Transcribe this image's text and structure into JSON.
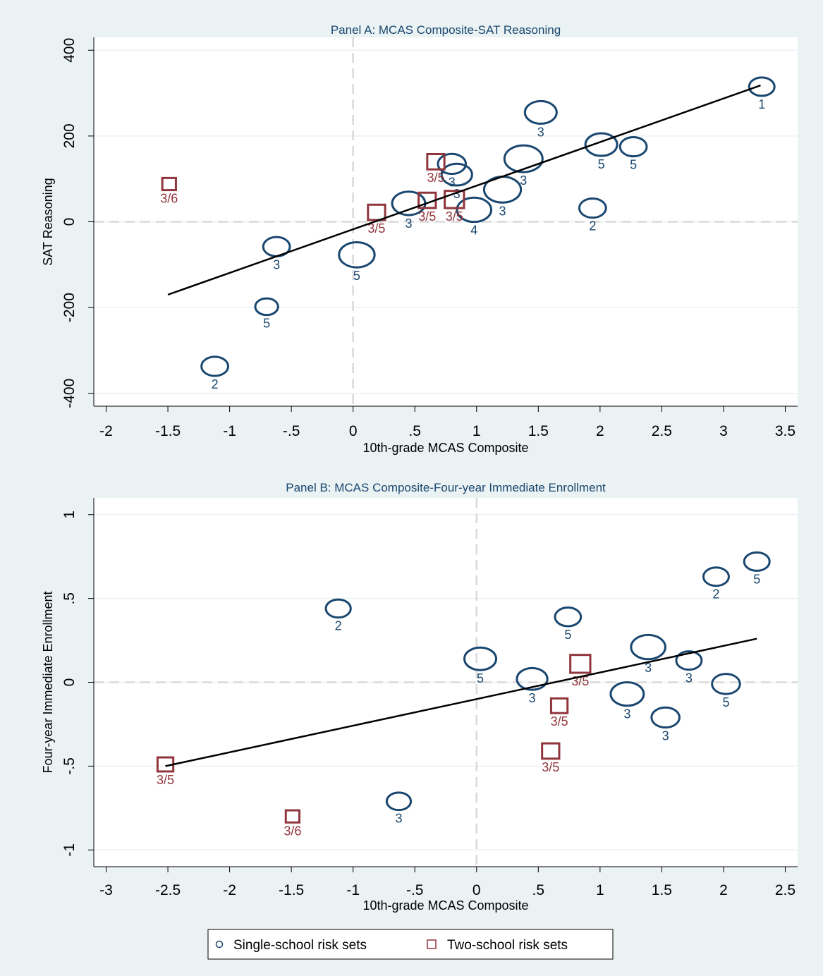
{
  "legend": {
    "items": [
      {
        "label": "Single-school risk sets",
        "marker": "circle",
        "color": "#1a476f"
      },
      {
        "label": "Two-school risk sets",
        "marker": "square",
        "color": "#90353b"
      }
    ]
  },
  "colors": {
    "background": "#eaf2f3",
    "plot_area": "#ffffff",
    "single_school": "#1a476f",
    "two_school": "#90353b",
    "fit_line": "#000000",
    "zero_line": "#d9d9d9"
  },
  "chart_data": [
    {
      "type": "scatter",
      "title": "Panel A: MCAS Composite-SAT Reasoning",
      "xlabel": "10th-grade MCAS Composite",
      "ylabel": "SAT Reasoning",
      "xlim": [
        -2.1,
        3.6
      ],
      "ylim": [
        -430,
        430
      ],
      "xticks": [
        -2,
        -1.5,
        -1,
        -0.5,
        0,
        0.5,
        1,
        1.5,
        2,
        2.5,
        3,
        3.5
      ],
      "xtick_labels": [
        "-2",
        "-1.5",
        "-1",
        "-.5",
        "0",
        ".5",
        "1",
        "1.5",
        "2",
        "2.5",
        "3",
        "3.5"
      ],
      "yticks": [
        -400,
        -200,
        0,
        200,
        400
      ],
      "ytick_labels": [
        "-400",
        "-200",
        "0",
        "200",
        "400"
      ],
      "grid": true,
      "reference_lines": {
        "x": 0,
        "y": 0
      },
      "fit_line": {
        "x": [
          -1.5,
          3.3
        ],
        "y": [
          -170,
          318
        ]
      },
      "series": [
        {
          "name": "Single-school risk sets",
          "marker": "circle",
          "points": [
            {
              "x": 3.31,
              "y": 315,
              "label": "1",
              "size": 0.5
            },
            {
              "x": 1.52,
              "y": 255,
              "label": "3",
              "size": 0.75
            },
            {
              "x": 2.01,
              "y": 180,
              "label": "5",
              "size": 0.75
            },
            {
              "x": 2.27,
              "y": 175,
              "label": "5",
              "size": 0.55
            },
            {
              "x": 1.38,
              "y": 147,
              "label": "3",
              "size": 1.0
            },
            {
              "x": 0.8,
              "y": 135,
              "label": "3",
              "size": 0.6
            },
            {
              "x": 0.84,
              "y": 110,
              "label": "3",
              "size": 0.7
            },
            {
              "x": 1.21,
              "y": 75,
              "label": "3",
              "size": 0.95
            },
            {
              "x": 0.45,
              "y": 43,
              "label": "3",
              "size": 0.8
            },
            {
              "x": 0.98,
              "y": 28,
              "label": "4",
              "size": 0.85
            },
            {
              "x": 1.94,
              "y": 32,
              "label": "2",
              "size": 0.55
            },
            {
              "x": -0.62,
              "y": -58,
              "label": "3",
              "size": 0.55
            },
            {
              "x": 0.03,
              "y": -77,
              "label": "5",
              "size": 0.9
            },
            {
              "x": -0.7,
              "y": -198,
              "label": "5",
              "size": 0.4
            },
            {
              "x": -1.12,
              "y": -337,
              "label": "2",
              "size": 0.55
            }
          ]
        },
        {
          "name": "Two-school risk sets",
          "marker": "square",
          "points": [
            {
              "x": -1.49,
              "y": 88,
              "label": "3/6",
              "size": 0.4
            },
            {
              "x": 0.67,
              "y": 140,
              "label": "3/5",
              "size": 0.65
            },
            {
              "x": 0.6,
              "y": 50,
              "label": "3/5",
              "size": 0.65
            },
            {
              "x": 0.82,
              "y": 52,
              "label": "3/5",
              "size": 0.8
            },
            {
              "x": 0.19,
              "y": 22,
              "label": "3/5",
              "size": 0.65
            }
          ]
        }
      ]
    },
    {
      "type": "scatter",
      "title": "Panel B: MCAS Composite-Four-year Immediate Enrollment",
      "xlabel": "10th-grade MCAS Composite",
      "ylabel": "Four-year Immediate Enrollment",
      "xlim": [
        -3.1,
        2.6
      ],
      "ylim": [
        -1.1,
        1.1
      ],
      "xticks": [
        -3,
        -2.5,
        -2,
        -1.5,
        -1,
        -0.5,
        0,
        0.5,
        1,
        1.5,
        2,
        2.5
      ],
      "xtick_labels": [
        "-3",
        "-2.5",
        "-2",
        "-1.5",
        "-1",
        "-.5",
        "0",
        ".5",
        "1",
        "1.5",
        "2",
        "2.5"
      ],
      "yticks": [
        -1,
        -0.5,
        0,
        0.5,
        1
      ],
      "ytick_labels": [
        "-1",
        "-.5",
        "0",
        ".5",
        "1"
      ],
      "grid": true,
      "reference_lines": {
        "x": 0,
        "y": 0
      },
      "fit_line": {
        "x": [
          -2.52,
          2.27
        ],
        "y": [
          -0.5,
          0.26
        ]
      },
      "series": [
        {
          "name": "Single-school risk sets",
          "marker": "circle",
          "points": [
            {
              "x": 2.27,
              "y": 0.72,
              "label": "5",
              "size": 0.5
            },
            {
              "x": 1.94,
              "y": 0.63,
              "label": "2",
              "size": 0.5
            },
            {
              "x": -1.12,
              "y": 0.44,
              "label": "2",
              "size": 0.48
            },
            {
              "x": 0.74,
              "y": 0.39,
              "label": "5",
              "size": 0.52
            },
            {
              "x": 1.39,
              "y": 0.21,
              "label": "3",
              "size": 0.85
            },
            {
              "x": 0.03,
              "y": 0.14,
              "label": "5",
              "size": 0.75
            },
            {
              "x": 1.72,
              "y": 0.13,
              "label": "3",
              "size": 0.5
            },
            {
              "x": 0.45,
              "y": 0.02,
              "label": "3",
              "size": 0.7
            },
            {
              "x": 2.02,
              "y": -0.01,
              "label": "5",
              "size": 0.6
            },
            {
              "x": 1.22,
              "y": -0.07,
              "label": "3",
              "size": 0.8
            },
            {
              "x": 1.53,
              "y": -0.21,
              "label": "3",
              "size": 0.6
            },
            {
              "x": -0.63,
              "y": -0.71,
              "label": "3",
              "size": 0.45
            }
          ]
        },
        {
          "name": "Two-school risk sets",
          "marker": "square",
          "points": [
            {
              "x": 0.84,
              "y": 0.11,
              "label": "3/5",
              "size": 0.85
            },
            {
              "x": 0.67,
              "y": -0.14,
              "label": "3/5",
              "size": 0.6
            },
            {
              "x": 0.6,
              "y": -0.41,
              "label": "3/5",
              "size": 0.65
            },
            {
              "x": -2.52,
              "y": -0.49,
              "label": "3/5",
              "size": 0.55
            },
            {
              "x": -1.49,
              "y": -0.8,
              "label": "3/6",
              "size": 0.4
            }
          ]
        }
      ]
    }
  ]
}
